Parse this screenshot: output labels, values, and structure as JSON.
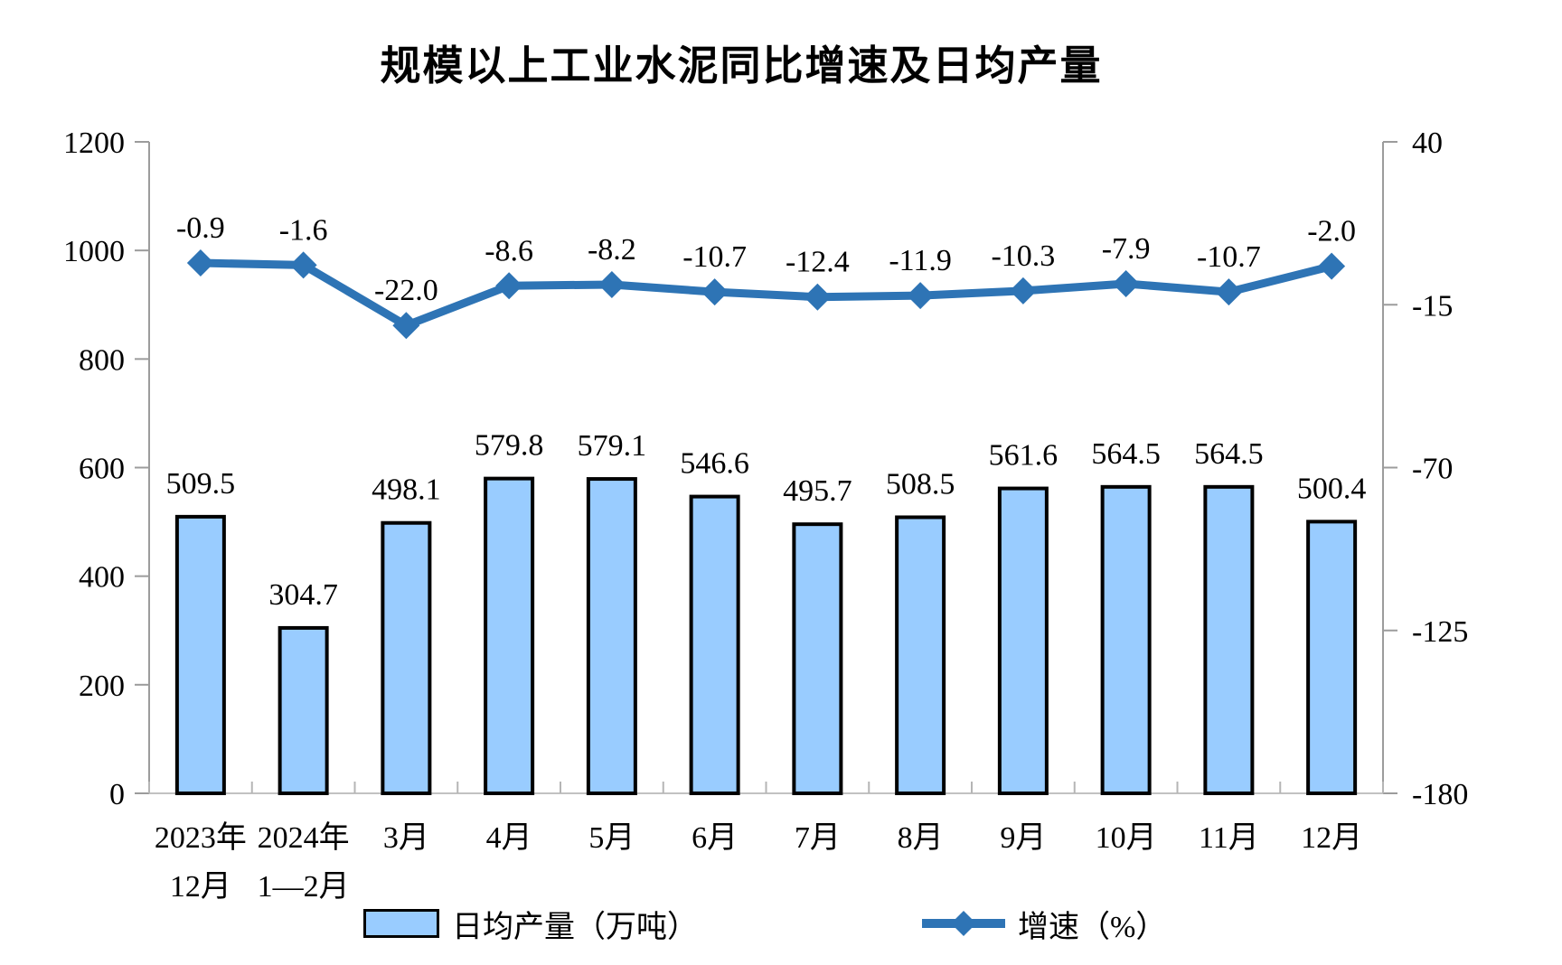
{
  "chart_data": {
    "type": "combo_bar_line",
    "title": "规模以上工业水泥同比增速及日均产量",
    "categories": [
      "2023年\n12月",
      "2024年\n1—2月",
      "3月",
      "4月",
      "5月",
      "6月",
      "7月",
      "8月",
      "9月",
      "10月",
      "11月",
      "12月"
    ],
    "series": [
      {
        "name": "日均产量（万吨）",
        "type": "bar",
        "axis": "left",
        "color": "#99CCFF",
        "border_color": "#000000",
        "values": [
          509.5,
          304.7,
          498.1,
          579.8,
          579.1,
          546.6,
          495.7,
          508.5,
          561.6,
          564.5,
          564.5,
          500.4
        ]
      },
      {
        "name": "增速（%）",
        "type": "line",
        "axis": "right",
        "color": "#2E74B5",
        "marker": "diamond",
        "values": [
          -0.9,
          -1.6,
          -22.0,
          -8.6,
          -8.2,
          -10.7,
          -12.4,
          -11.9,
          -10.3,
          -7.9,
          -10.7,
          -2.0
        ]
      }
    ],
    "left_axis": {
      "min": 0,
      "max": 1200,
      "ticks": [
        0,
        200,
        400,
        600,
        800,
        1000,
        1200
      ]
    },
    "right_axis": {
      "min": -180,
      "max": 40,
      "ticks": [
        40,
        -15,
        -70,
        -125,
        -180
      ]
    },
    "grid": false,
    "legend_position": "bottom",
    "data_labels": true
  }
}
